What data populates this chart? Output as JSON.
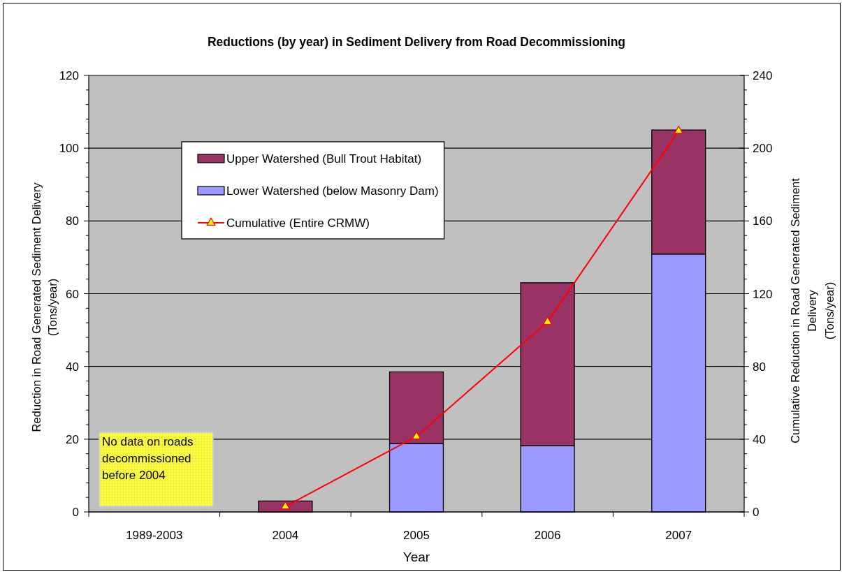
{
  "chart_data": {
    "type": "bar",
    "title": "Reductions (by year) in Sediment Delivery from Road Decommissioning",
    "xlabel": "Year",
    "ylabel": "Reduction in Road Generated  Sediment Delivery\n(Tons/year)",
    "y2label": "Cumulative Reduction in Road Generated Sediment\nDelivery\n(Tons/year)",
    "categories": [
      "1989-2003",
      "2004",
      "2005",
      "2006",
      "2007"
    ],
    "stacked": true,
    "series": [
      {
        "name": "Lower Watershed (below Masonry Dam)",
        "color": "#9999ff",
        "values": [
          null,
          null,
          18.8,
          18.2,
          70.9
        ]
      },
      {
        "name": "Upper Watershed (Bull Trout Habitat)",
        "color": "#993366",
        "values": [
          null,
          3,
          19.7,
          44.8,
          34.1
        ]
      },
      {
        "name": "Cumulative (Entire CRMW)",
        "type": "line",
        "axis": "y2",
        "color": "#ff0000",
        "values": [
          null,
          3,
          41.5,
          104.5,
          209.5
        ]
      }
    ],
    "marker": "triangle",
    "ylim": [
      0,
      120
    ],
    "yticks": [
      0,
      {
        "value": 4,
        "label": null
      },
      {
        "value": 8,
        "label": null
      },
      {
        "value": 12,
        "label": null
      },
      {
        "value": 16,
        "label": null
      },
      20,
      {
        "value": 24,
        "label": null
      },
      {
        "value": 28,
        "label": null
      },
      {
        "value": 32,
        "label": null
      },
      {
        "value": 36,
        "label": null
      },
      40,
      {
        "value": 44,
        "label": null
      },
      {
        "value": 48,
        "label": null
      },
      {
        "value": 52,
        "label": null
      },
      {
        "value": 56,
        "label": null
      },
      60,
      {
        "value": 64,
        "label": null
      },
      {
        "value": 68,
        "label": null
      },
      {
        "value": 72,
        "label": null
      },
      {
        "value": 76,
        "label": null
      },
      80,
      {
        "value": 84,
        "label": null
      },
      {
        "value": 88,
        "label": null
      },
      {
        "value": 92,
        "label": null
      },
      {
        "value": 96,
        "label": null
      },
      100,
      {
        "value": 104,
        "label": null
      },
      {
        "value": 108,
        "label": null
      },
      {
        "value": 112,
        "label": null
      },
      {
        "value": 116,
        "label": null
      },
      120
    ],
    "y2lim": [
      0,
      240
    ],
    "y2ticks": [
      0,
      {
        "value": 8,
        "label": null
      },
      {
        "value": 16,
        "label": null
      },
      {
        "value": 24,
        "label": null
      },
      {
        "value": 32,
        "label": null
      },
      40,
      {
        "value": 48,
        "label": null
      },
      {
        "value": 56,
        "label": null
      },
      {
        "value": 64,
        "label": null
      },
      {
        "value": 72,
        "label": null
      },
      80,
      {
        "value": 88,
        "label": null
      },
      {
        "value": 96,
        "label": null
      },
      {
        "value": 104,
        "label": null
      },
      {
        "value": 112,
        "label": null
      },
      120,
      {
        "value": 128,
        "label": null
      },
      {
        "value": 136,
        "label": null
      },
      {
        "value": 144,
        "label": null
      },
      {
        "value": 152,
        "label": null
      },
      160,
      {
        "value": 168,
        "label": null
      },
      {
        "value": 176,
        "label": null
      },
      {
        "value": 184,
        "label": null
      },
      {
        "value": 192,
        "label": null
      },
      200,
      {
        "value": 208,
        "label": null
      },
      {
        "value": 216,
        "label": null
      },
      {
        "value": 224,
        "label": null
      },
      {
        "value": 232,
        "label": null
      },
      240
    ],
    "grid": "y",
    "legend": "top left",
    "annotations": [
      "No data on roads decommissioned before 2004"
    ]
  }
}
